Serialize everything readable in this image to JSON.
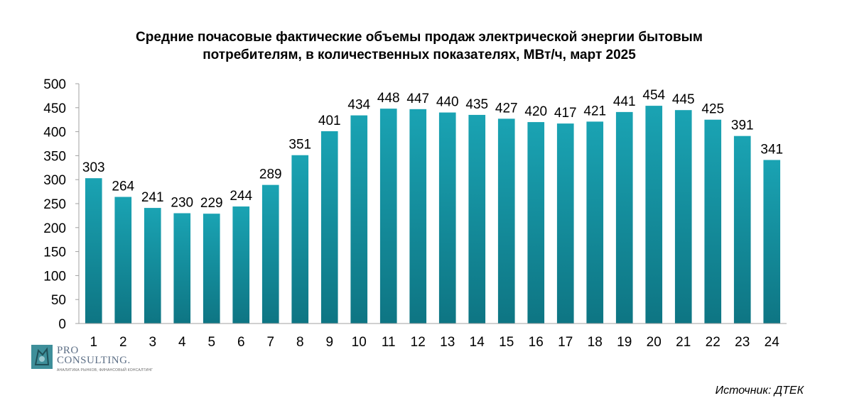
{
  "title_lines": [
    "Средние почасовые фактические объемы продаж электрической энергии бытовым",
    "потребителям, в количественных показателях, МВт/ч, март 2025"
  ],
  "source": "Источник: ДТЕК",
  "logo": {
    "pro": "PRO",
    "name": "CONSULTING.",
    "tagline": "АНАЛИТИКА РЫНКОВ, ФИНАНСОВЫЙ КОНСАЛТИНГ"
  },
  "colors": {
    "bar_top": "#1aa3b3",
    "bar_bottom": "#0e7583",
    "axis": "#a0a0a0",
    "logo_mark": "#3e8f9a"
  },
  "chart_data": {
    "type": "bar",
    "title": "Средние почасовые фактические объемы продаж электрической энергии бытовым потребителям, в количественных показателях, МВт/ч, март 2025",
    "xlabel": "",
    "ylabel": "",
    "categories": [
      "1",
      "2",
      "3",
      "4",
      "5",
      "6",
      "7",
      "8",
      "9",
      "10",
      "11",
      "12",
      "13",
      "14",
      "15",
      "16",
      "17",
      "18",
      "19",
      "20",
      "21",
      "22",
      "23",
      "24"
    ],
    "values": [
      303,
      264,
      241,
      230,
      229,
      244,
      289,
      351,
      401,
      434,
      448,
      447,
      440,
      435,
      427,
      420,
      417,
      421,
      441,
      454,
      445,
      425,
      391,
      341
    ],
    "ylim": [
      0,
      500
    ],
    "yticks": [
      0,
      50,
      100,
      150,
      200,
      250,
      300,
      350,
      400,
      450,
      500
    ],
    "grid": false,
    "legend": "none",
    "data_labels": true
  }
}
